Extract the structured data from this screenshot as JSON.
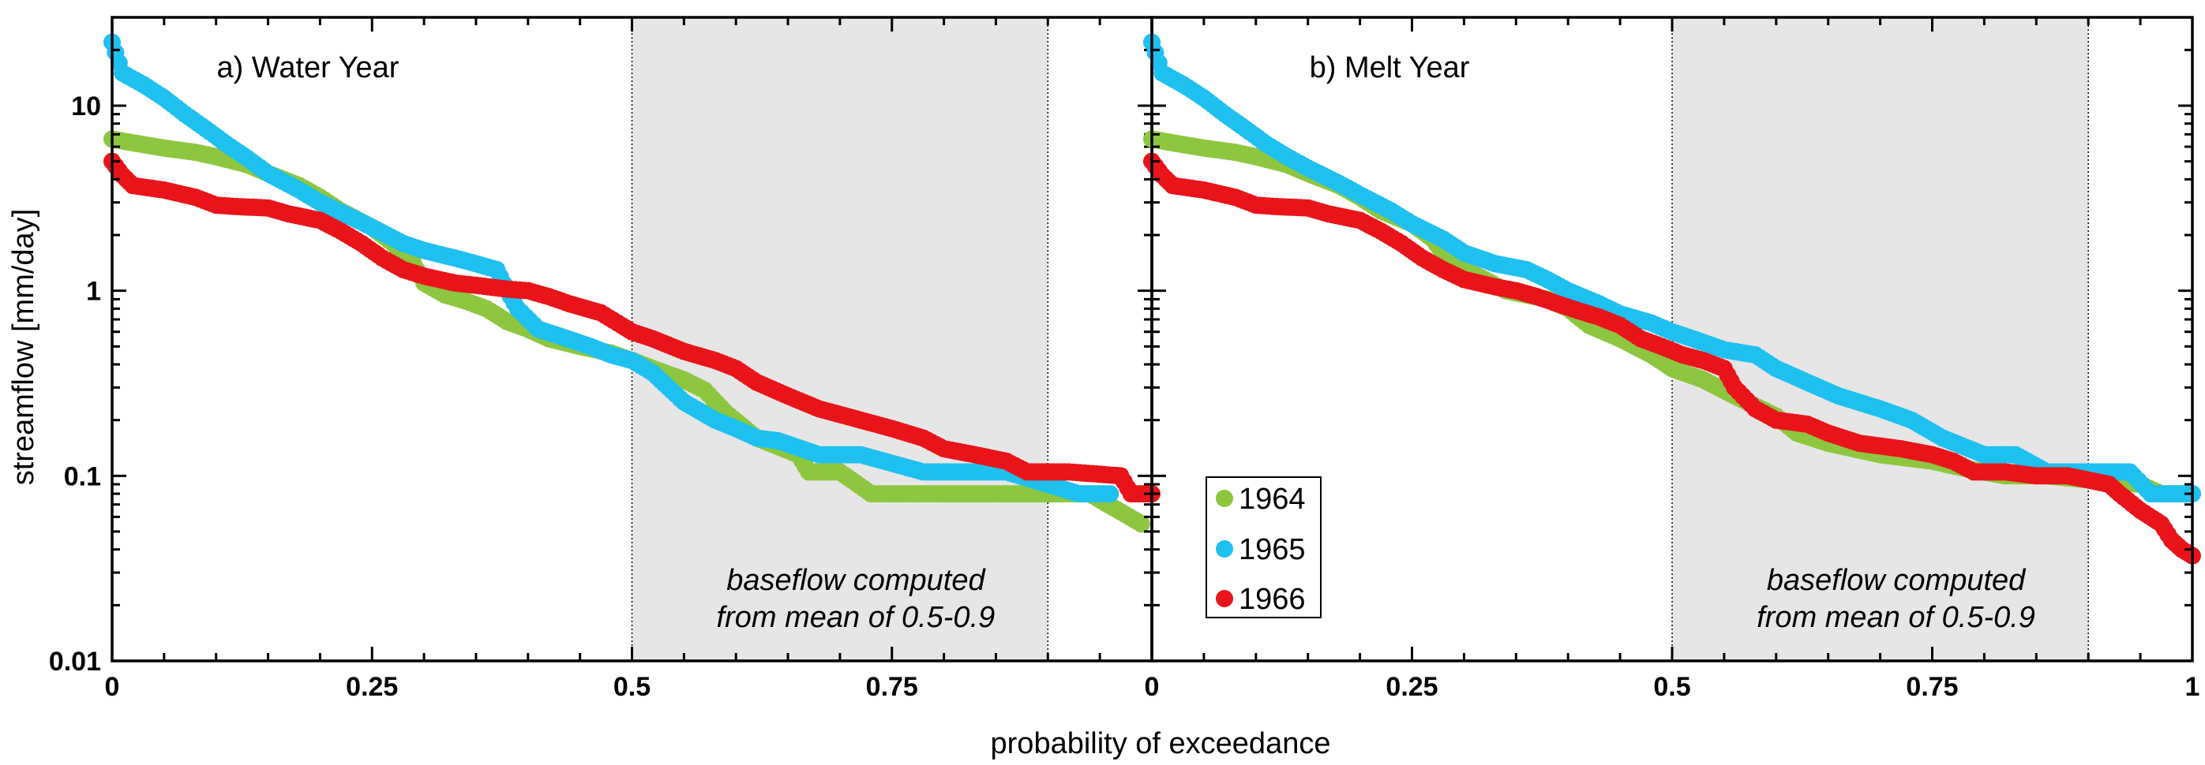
{
  "colors": {
    "1964": "#8dc63f",
    "1965": "#1ec0ef",
    "1966": "#e8141a",
    "shade": "#e6e6e6"
  },
  "chart_data": [
    {
      "type": "scatter",
      "title": "a) Water Year",
      "xlabel": "probability of exceedance",
      "ylabel": "streamflow [mm/day]",
      "xlim": [
        0,
        1
      ],
      "ylim": [
        0.01,
        30
      ],
      "yscale": "log",
      "x_ticks": [
        "0",
        "0.25",
        "0.5",
        "0.75",
        ""
      ],
      "y_ticks": [
        "0.01",
        "0.1",
        "1",
        "10"
      ],
      "shaded_region": [
        0.5,
        0.9
      ],
      "annotation": [
        "baseflow computed",
        "from mean of 0.5-0.9"
      ],
      "series": [
        {
          "name": "1964",
          "points": [
            [
              0.0,
              6.6
            ],
            [
              0.02,
              6.3
            ],
            [
              0.05,
              5.9
            ],
            [
              0.08,
              5.6
            ],
            [
              0.1,
              5.3
            ],
            [
              0.13,
              4.8
            ],
            [
              0.15,
              4.3
            ],
            [
              0.18,
              3.7
            ],
            [
              0.2,
              3.2
            ],
            [
              0.22,
              2.7
            ],
            [
              0.25,
              2.2
            ],
            [
              0.27,
              1.8
            ],
            [
              0.29,
              1.4
            ],
            [
              0.3,
              1.1
            ],
            [
              0.32,
              0.95
            ],
            [
              0.34,
              0.88
            ],
            [
              0.36,
              0.8
            ],
            [
              0.38,
              0.68
            ],
            [
              0.4,
              0.62
            ],
            [
              0.42,
              0.55
            ],
            [
              0.45,
              0.5
            ],
            [
              0.48,
              0.46
            ],
            [
              0.5,
              0.42
            ],
            [
              0.52,
              0.38
            ],
            [
              0.55,
              0.33
            ],
            [
              0.57,
              0.29
            ],
            [
              0.59,
              0.22
            ],
            [
              0.62,
              0.16
            ],
            [
              0.66,
              0.13
            ],
            [
              0.67,
              0.105
            ],
            [
              0.7,
              0.105
            ],
            [
              0.73,
              0.08
            ],
            [
              0.8,
              0.08
            ],
            [
              0.9,
              0.08
            ],
            [
              0.94,
              0.08
            ],
            [
              0.99,
              0.055
            ]
          ]
        },
        {
          "name": "1965",
          "points": [
            [
              0.0,
              22
            ],
            [
              0.01,
              15
            ],
            [
              0.03,
              13
            ],
            [
              0.05,
              11
            ],
            [
              0.07,
              9
            ],
            [
              0.09,
              7.5
            ],
            [
              0.11,
              6.2
            ],
            [
              0.13,
              5.2
            ],
            [
              0.15,
              4.3
            ],
            [
              0.18,
              3.5
            ],
            [
              0.2,
              3.0
            ],
            [
              0.23,
              2.5
            ],
            [
              0.25,
              2.2
            ],
            [
              0.28,
              1.8
            ],
            [
              0.3,
              1.65
            ],
            [
              0.33,
              1.5
            ],
            [
              0.35,
              1.4
            ],
            [
              0.37,
              1.3
            ],
            [
              0.38,
              1.0
            ],
            [
              0.39,
              0.8
            ],
            [
              0.41,
              0.62
            ],
            [
              0.43,
              0.57
            ],
            [
              0.46,
              0.5
            ],
            [
              0.48,
              0.45
            ],
            [
              0.5,
              0.42
            ],
            [
              0.52,
              0.36
            ],
            [
              0.55,
              0.25
            ],
            [
              0.58,
              0.2
            ],
            [
              0.6,
              0.18
            ],
            [
              0.62,
              0.16
            ],
            [
              0.64,
              0.155
            ],
            [
              0.68,
              0.13
            ],
            [
              0.72,
              0.13
            ],
            [
              0.78,
              0.105
            ],
            [
              0.86,
              0.105
            ],
            [
              0.93,
              0.08
            ],
            [
              0.96,
              0.08
            ]
          ]
        },
        {
          "name": "1966",
          "points": [
            [
              0.0,
              5.0
            ],
            [
              0.01,
              4.2
            ],
            [
              0.02,
              3.7
            ],
            [
              0.05,
              3.5
            ],
            [
              0.08,
              3.2
            ],
            [
              0.1,
              2.9
            ],
            [
              0.12,
              2.85
            ],
            [
              0.15,
              2.8
            ],
            [
              0.17,
              2.6
            ],
            [
              0.2,
              2.4
            ],
            [
              0.22,
              2.1
            ],
            [
              0.24,
              1.8
            ],
            [
              0.26,
              1.5
            ],
            [
              0.28,
              1.3
            ],
            [
              0.3,
              1.2
            ],
            [
              0.33,
              1.1
            ],
            [
              0.35,
              1.07
            ],
            [
              0.38,
              1.02
            ],
            [
              0.4,
              1.0
            ],
            [
              0.42,
              0.93
            ],
            [
              0.44,
              0.85
            ],
            [
              0.47,
              0.76
            ],
            [
              0.49,
              0.65
            ],
            [
              0.5,
              0.6
            ],
            [
              0.52,
              0.55
            ],
            [
              0.55,
              0.47
            ],
            [
              0.58,
              0.42
            ],
            [
              0.6,
              0.38
            ],
            [
              0.62,
              0.32
            ],
            [
              0.65,
              0.27
            ],
            [
              0.68,
              0.23
            ],
            [
              0.72,
              0.2
            ],
            [
              0.75,
              0.18
            ],
            [
              0.78,
              0.16
            ],
            [
              0.8,
              0.14
            ],
            [
              0.83,
              0.13
            ],
            [
              0.86,
              0.12
            ],
            [
              0.88,
              0.105
            ],
            [
              0.92,
              0.105
            ],
            [
              0.97,
              0.1
            ],
            [
              0.98,
              0.08
            ],
            [
              1.0,
              0.08
            ]
          ]
        }
      ]
    },
    {
      "type": "scatter",
      "title": "b) Melt Year",
      "xlabel": "probability of exceedance",
      "ylabel": "streamflow [mm/day]",
      "xlim": [
        0,
        1
      ],
      "ylim": [
        0.01,
        30
      ],
      "yscale": "log",
      "x_ticks": [
        "0",
        "0.25",
        "0.5",
        "0.75",
        "1"
      ],
      "shaded_region": [
        0.5,
        0.9
      ],
      "annotation": [
        "baseflow computed",
        "from mean of 0.5-0.9"
      ],
      "series": [
        {
          "name": "1964",
          "points": [
            [
              0.0,
              6.6
            ],
            [
              0.02,
              6.3
            ],
            [
              0.05,
              5.9
            ],
            [
              0.08,
              5.6
            ],
            [
              0.1,
              5.3
            ],
            [
              0.13,
              4.8
            ],
            [
              0.15,
              4.3
            ],
            [
              0.18,
              3.7
            ],
            [
              0.2,
              3.2
            ],
            [
              0.22,
              2.7
            ],
            [
              0.25,
              2.3
            ],
            [
              0.27,
              1.9
            ],
            [
              0.28,
              1.6
            ],
            [
              0.3,
              1.3
            ],
            [
              0.32,
              1.15
            ],
            [
              0.34,
              1.0
            ],
            [
              0.38,
              0.9
            ],
            [
              0.4,
              0.8
            ],
            [
              0.42,
              0.65
            ],
            [
              0.45,
              0.55
            ],
            [
              0.48,
              0.45
            ],
            [
              0.5,
              0.38
            ],
            [
              0.53,
              0.33
            ],
            [
              0.56,
              0.27
            ],
            [
              0.6,
              0.21
            ],
            [
              0.62,
              0.17
            ],
            [
              0.65,
              0.15
            ],
            [
              0.7,
              0.13
            ],
            [
              0.75,
              0.12
            ],
            [
              0.78,
              0.11
            ],
            [
              0.82,
              0.1
            ],
            [
              0.86,
              0.1
            ],
            [
              0.9,
              0.095
            ],
            [
              0.95,
              0.09
            ],
            [
              0.97,
              0.08
            ],
            [
              1.0,
              0.08
            ]
          ]
        },
        {
          "name": "1965",
          "points": [
            [
              0.0,
              22
            ],
            [
              0.01,
              15
            ],
            [
              0.03,
              13
            ],
            [
              0.05,
              11
            ],
            [
              0.07,
              9
            ],
            [
              0.09,
              7.5
            ],
            [
              0.11,
              6.2
            ],
            [
              0.13,
              5.3
            ],
            [
              0.15,
              4.6
            ],
            [
              0.18,
              3.8
            ],
            [
              0.2,
              3.3
            ],
            [
              0.23,
              2.7
            ],
            [
              0.25,
              2.3
            ],
            [
              0.28,
              1.9
            ],
            [
              0.3,
              1.6
            ],
            [
              0.33,
              1.4
            ],
            [
              0.36,
              1.3
            ],
            [
              0.38,
              1.15
            ],
            [
              0.4,
              1.0
            ],
            [
              0.43,
              0.85
            ],
            [
              0.45,
              0.75
            ],
            [
              0.48,
              0.67
            ],
            [
              0.5,
              0.6
            ],
            [
              0.52,
              0.55
            ],
            [
              0.55,
              0.48
            ],
            [
              0.58,
              0.45
            ],
            [
              0.6,
              0.38
            ],
            [
              0.63,
              0.32
            ],
            [
              0.66,
              0.27
            ],
            [
              0.7,
              0.23
            ],
            [
              0.73,
              0.2
            ],
            [
              0.76,
              0.16
            ],
            [
              0.8,
              0.13
            ],
            [
              0.83,
              0.13
            ],
            [
              0.86,
              0.105
            ],
            [
              0.9,
              0.105
            ],
            [
              0.94,
              0.105
            ],
            [
              0.96,
              0.08
            ],
            [
              0.98,
              0.08
            ],
            [
              1.0,
              0.08
            ]
          ]
        },
        {
          "name": "1966",
          "points": [
            [
              0.0,
              5.0
            ],
            [
              0.01,
              4.2
            ],
            [
              0.02,
              3.7
            ],
            [
              0.05,
              3.5
            ],
            [
              0.08,
              3.2
            ],
            [
              0.1,
              2.9
            ],
            [
              0.12,
              2.85
            ],
            [
              0.15,
              2.8
            ],
            [
              0.17,
              2.6
            ],
            [
              0.2,
              2.4
            ],
            [
              0.22,
              2.1
            ],
            [
              0.24,
              1.8
            ],
            [
              0.26,
              1.5
            ],
            [
              0.28,
              1.3
            ],
            [
              0.3,
              1.15
            ],
            [
              0.33,
              1.05
            ],
            [
              0.35,
              1.0
            ],
            [
              0.37,
              0.93
            ],
            [
              0.39,
              0.85
            ],
            [
              0.41,
              0.78
            ],
            [
              0.43,
              0.72
            ],
            [
              0.45,
              0.65
            ],
            [
              0.47,
              0.55
            ],
            [
              0.49,
              0.5
            ],
            [
              0.51,
              0.45
            ],
            [
              0.53,
              0.42
            ],
            [
              0.55,
              0.38
            ],
            [
              0.56,
              0.3
            ],
            [
              0.58,
              0.23
            ],
            [
              0.6,
              0.2
            ],
            [
              0.63,
              0.19
            ],
            [
              0.65,
              0.17
            ],
            [
              0.68,
              0.15
            ],
            [
              0.72,
              0.14
            ],
            [
              0.75,
              0.13
            ],
            [
              0.77,
              0.12
            ],
            [
              0.79,
              0.105
            ],
            [
              0.82,
              0.105
            ],
            [
              0.85,
              0.1
            ],
            [
              0.88,
              0.1
            ],
            [
              0.9,
              0.095
            ],
            [
              0.92,
              0.09
            ],
            [
              0.93,
              0.08
            ],
            [
              0.95,
              0.065
            ],
            [
              0.97,
              0.055
            ],
            [
              0.98,
              0.045
            ],
            [
              0.99,
              0.04
            ],
            [
              1.0,
              0.037
            ]
          ]
        }
      ]
    }
  ],
  "legend": {
    "items": [
      {
        "label": "1964",
        "color_key": "1964"
      },
      {
        "label": "1965",
        "color_key": "1965"
      },
      {
        "label": "1966",
        "color_key": "1966"
      }
    ]
  }
}
